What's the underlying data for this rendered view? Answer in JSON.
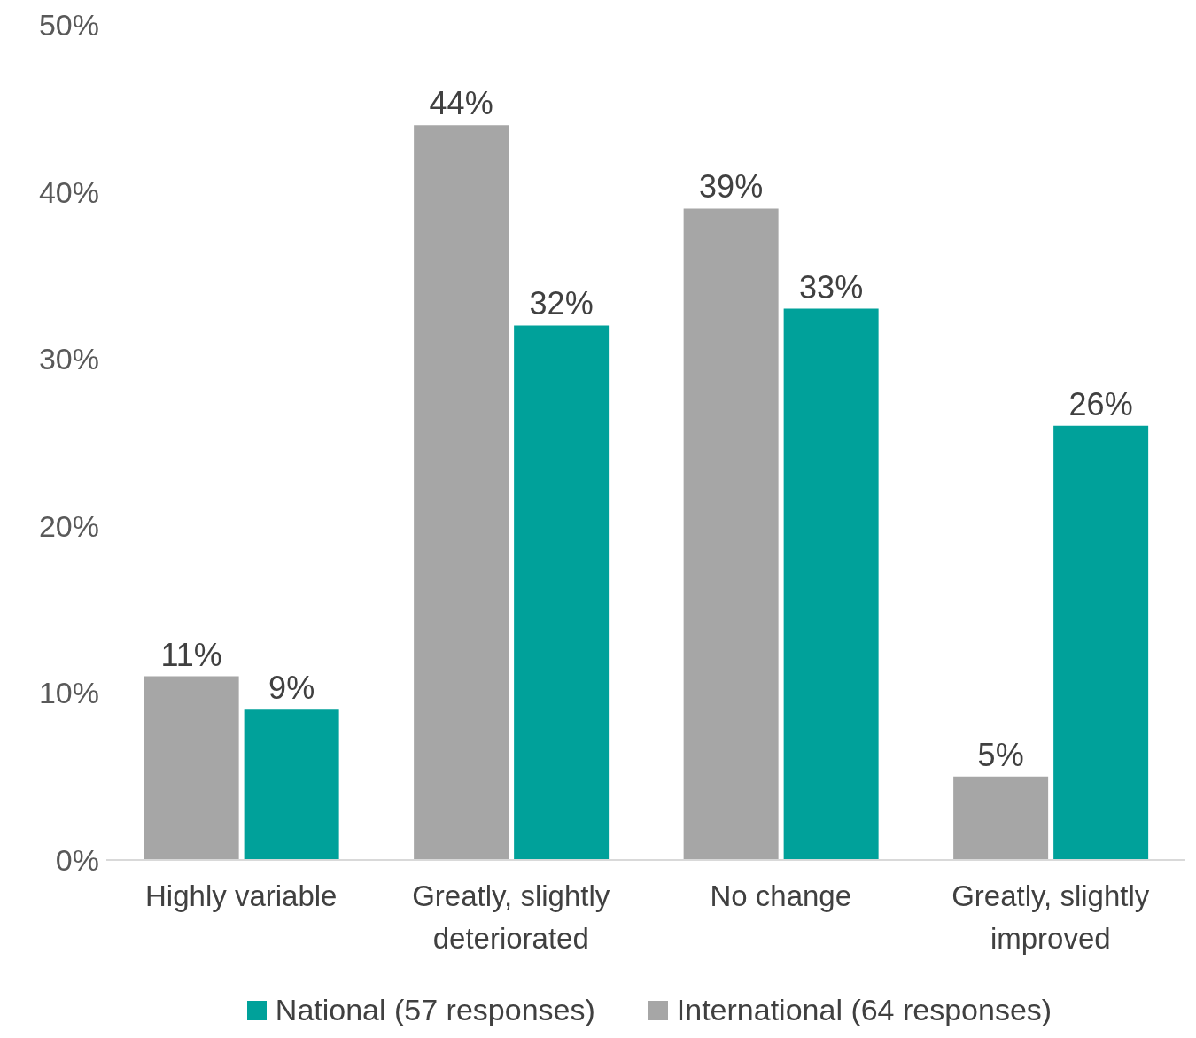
{
  "chart_data": {
    "type": "bar",
    "categories": [
      "Highly variable",
      "Greatly, slightly deteriorated",
      "No change",
      "Greatly, slightly improved"
    ],
    "series": [
      {
        "name": "International (64 responses)",
        "color": "#a6a6a6",
        "values": [
          11,
          44,
          39,
          5
        ],
        "value_labels": [
          "11%",
          "44%",
          "39%",
          "5%"
        ]
      },
      {
        "name": "National (57 responses)",
        "color": "#00a19a",
        "values": [
          9,
          32,
          33,
          26
        ],
        "value_labels": [
          "9%",
          "32%",
          "33%",
          "26%"
        ]
      }
    ],
    "ylim": [
      0,
      50
    ],
    "yticks": [
      {
        "value": 0,
        "label": "0%"
      },
      {
        "value": 10,
        "label": "10%"
      },
      {
        "value": 20,
        "label": "20%"
      },
      {
        "value": 30,
        "label": "30%"
      },
      {
        "value": 40,
        "label": "40%"
      },
      {
        "value": 50,
        "label": "50%"
      }
    ],
    "grid": false,
    "legend": "bottom"
  }
}
